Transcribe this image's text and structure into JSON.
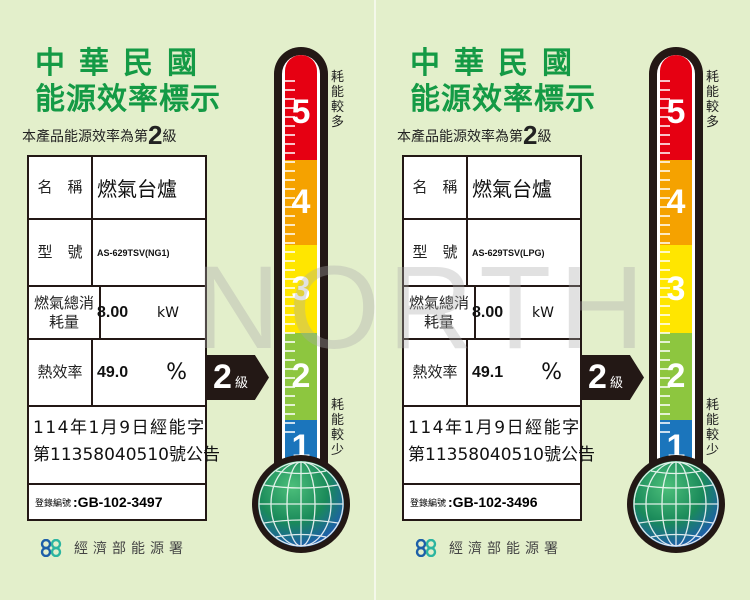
{
  "watermark": "NORTH",
  "labels": [
    {
      "title_line1": "中華民國",
      "title_line2": "能源效率標示",
      "subtitle_prefix": "本產品能源效率為第",
      "grade": "2",
      "grade_suffix": "級",
      "name_label": "名　稱",
      "name_value": "燃氣台爐",
      "model_label": "型　號",
      "model_value": "AS-629TSV(NG1)",
      "consumption_label": "燃氣總消耗量",
      "consumption_value": "8.00",
      "consumption_unit": "kW",
      "efficiency_label": "熱效率",
      "efficiency_value": "49.0",
      "efficiency_unit": "%",
      "announcement_line1": "114年1月9日經能字",
      "announcement_line2": "第11358040510號公告",
      "registration_label": "登錄編號",
      "registration_value": ":GB-102-3497",
      "agency": "經濟部能源署",
      "scale_top": "耗能較多",
      "scale_bottom": "耗能較少",
      "levels": [
        "5",
        "4",
        "3",
        "2",
        "1"
      ]
    },
    {
      "title_line1": "中華民國",
      "title_line2": "能源效率標示",
      "subtitle_prefix": "本產品能源效率為第",
      "grade": "2",
      "grade_suffix": "級",
      "name_label": "名　稱",
      "name_value": "燃氣台爐",
      "model_label": "型　號",
      "model_value": "AS-629TSV(LPG)",
      "consumption_label": "燃氣總消耗量",
      "consumption_value": "8.00",
      "consumption_unit": "kW",
      "efficiency_label": "熱效率",
      "efficiency_value": "49.1",
      "efficiency_unit": "%",
      "announcement_line1": "114年1月9日經能字",
      "announcement_line2": "第11358040510號公告",
      "registration_label": "登錄編號",
      "registration_value": ":GB-102-3496",
      "agency": "經濟部能源署",
      "scale_top": "耗能較多",
      "scale_bottom": "耗能較少",
      "levels": [
        "5",
        "4",
        "3",
        "2",
        "1"
      ]
    }
  ],
  "colors": {
    "background": "#e3efcb",
    "title": "#149a45",
    "level5": "#e60012",
    "level4": "#f5a200",
    "level3": "#ffe600",
    "level2": "#8dc63f",
    "level1": "#1b75bc"
  },
  "icons": {
    "agency_logo": "energy-agency-logo-icon",
    "globe": "globe-icon"
  }
}
